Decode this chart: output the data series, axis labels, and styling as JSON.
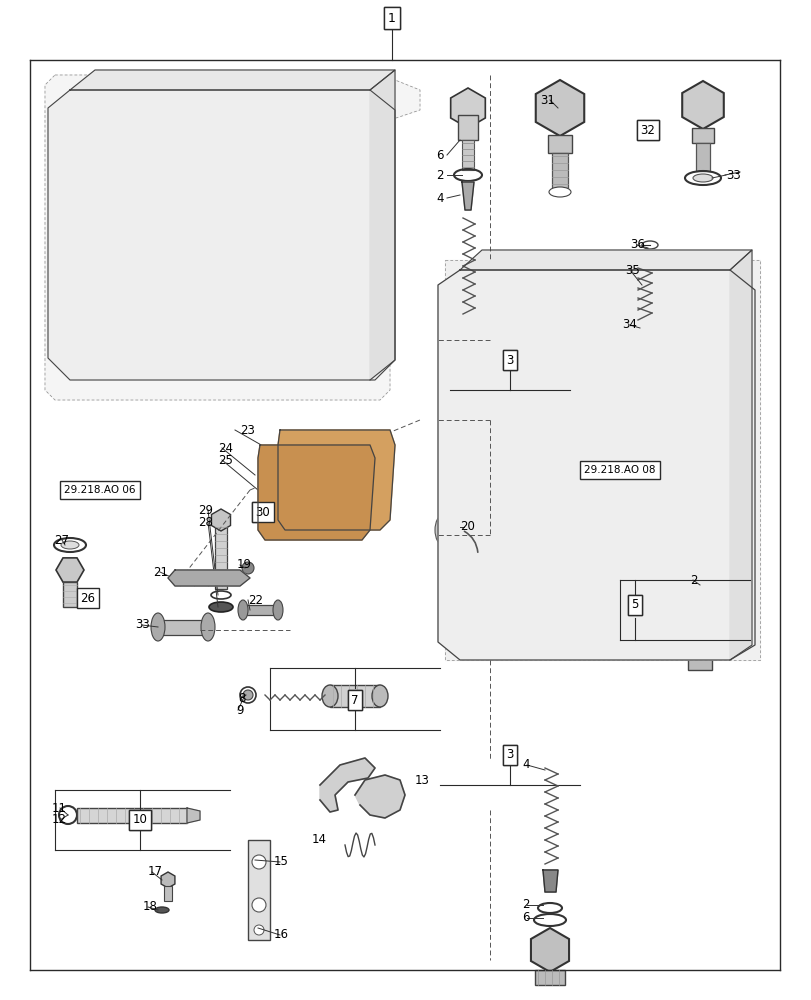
{
  "background_color": "#ffffff",
  "fig_width": 8.12,
  "fig_height": 10.0,
  "dpi": 100,
  "line_color": "#2a2a2a",
  "text_color": "#000000",
  "font_size": 8.5
}
